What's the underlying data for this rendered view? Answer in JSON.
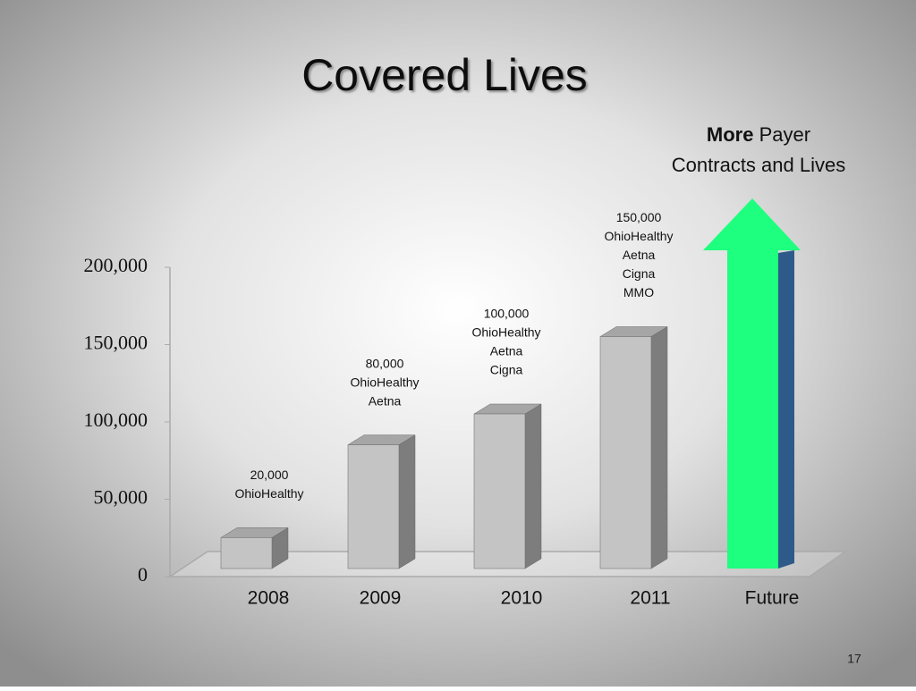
{
  "chart_data": {
    "type": "bar3d",
    "title": "Covered Lives",
    "categories": [
      "2008",
      "2009",
      "2010",
      "2011",
      "Future"
    ],
    "values": [
      20000,
      80000,
      100000,
      150000,
      null
    ],
    "value_labels": [
      "20,000",
      "80,000",
      "100,000",
      "150,000",
      null
    ],
    "payers": [
      [
        "OhioHealthy"
      ],
      [
        "OhioHealthy",
        "Aetna"
      ],
      [
        "OhioHealthy",
        "Aetna",
        "Cigna"
      ],
      [
        "OhioHealthy",
        "Aetna",
        "Cigna",
        "MMO"
      ],
      []
    ],
    "ylim": [
      0,
      200000
    ],
    "yticks": [
      0,
      {
        "value": 50000,
        "label": "50,000"
      },
      {
        "value": 100000,
        "label": "100,000"
      },
      {
        "value": 150000,
        "label": "150,000"
      },
      {
        "value": 200000,
        "label": "200,000"
      }
    ],
    "bar_color": "#c4c4c4",
    "arrow_color": "#1eff7f",
    "arrow_label": {
      "bold": "More",
      "rest": "Payer",
      "line2": "Contracts and Lives"
    },
    "page_number": "17"
  }
}
